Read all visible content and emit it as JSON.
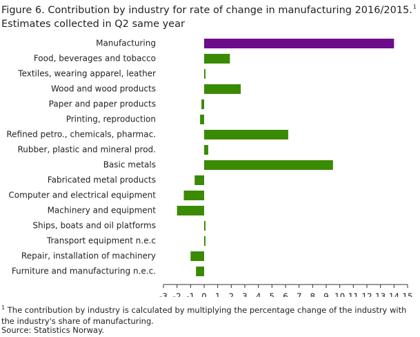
{
  "chart_data": {
    "type": "bar",
    "orientation": "horizontal",
    "title": "Figure 6. Contribution by industry for rate of change in manufacturing  2016/2015.",
    "title_note_marker": "1",
    "subtitle": "Estimates collected in Q2 same year",
    "categories": [
      "Manufacturing",
      "Food, beverages and tobacco",
      "Textiles, wearing apparel, leather",
      "Wood and wood products",
      "Paper and paper products",
      "Printing, reproduction",
      "Refined petro., chemicals, pharmac.",
      "Rubber, plastic and mineral prod.",
      "Basic metals",
      "Fabricated metal products",
      "Computer and electrical equipment",
      "Machinery and equipment",
      "Ships, boats and oil platforms",
      "Transport equipment n.e.c",
      "Repair, installation of machinery",
      "Furniture and manufacturing n.e.c."
    ],
    "values": [
      14.0,
      1.9,
      0.1,
      2.7,
      -0.2,
      -0.3,
      6.2,
      0.3,
      9.5,
      -0.7,
      -1.5,
      -2.0,
      0.1,
      0.1,
      -1.0,
      -0.6
    ],
    "colors": [
      "#6e0b8c",
      "#3b8a04",
      "#3b8a04",
      "#3b8a04",
      "#3b8a04",
      "#3b8a04",
      "#3b8a04",
      "#3b8a04",
      "#3b8a04",
      "#3b8a04",
      "#3b8a04",
      "#3b8a04",
      "#3b8a04",
      "#3b8a04",
      "#3b8a04",
      "#3b8a04"
    ],
    "xlim": [
      -3,
      15
    ],
    "xticks": [
      -3,
      -2,
      -1,
      0,
      1,
      2,
      3,
      4,
      5,
      6,
      7,
      8,
      9,
      10,
      11,
      12,
      13,
      14,
      15
    ],
    "grid": false,
    "footnote_marker": "1",
    "footnote": "The contribution  by industry is calculated by multiplying  the percentage change of the industry with the industry's share of manufacturing.",
    "source": "Source: Statistics Norway."
  }
}
